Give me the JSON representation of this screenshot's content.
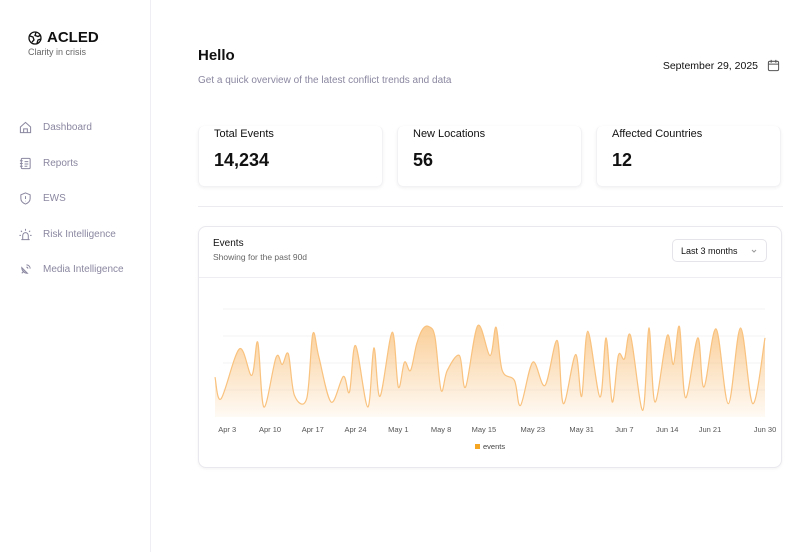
{
  "brand": {
    "name": "ACLED",
    "tagline": "Clarity in crisis",
    "icon": "globe-icon"
  },
  "sidebar": {
    "items": [
      {
        "label": "Dashboard",
        "icon": "home-icon"
      },
      {
        "label": "Reports",
        "icon": "notebook-icon"
      },
      {
        "label": "EWS",
        "icon": "shield-alert-icon"
      },
      {
        "label": "Risk Intelligence",
        "icon": "siren-icon"
      },
      {
        "label": "Media Intelligence",
        "icon": "satellite-dish-icon"
      }
    ]
  },
  "header": {
    "title": "Hello",
    "subtitle": "Get a quick overview of the latest conflict trends and data",
    "date": "September 29, 2025",
    "date_icon": "calendar-icon"
  },
  "stats": [
    {
      "label": "Total Events",
      "value": "14,234"
    },
    {
      "label": "New Locations",
      "value": "56"
    },
    {
      "label": "Affected Countries",
      "value": "12"
    }
  ],
  "panel": {
    "title": "Events",
    "subtitle": "Showing for the past 90d",
    "range_select": "Last 3 months"
  },
  "colors": {
    "accent": "#f5a623",
    "line": "#f9c27e"
  },
  "chart_data": {
    "type": "area",
    "legend": [
      "events"
    ],
    "legend_placement": "bottom",
    "grid": true,
    "ylim": [
      0,
      325
    ],
    "x_ticks": [
      "Apr 3",
      "Apr 10",
      "Apr 17",
      "Apr 24",
      "May 1",
      "May 8",
      "May 15",
      "May 23",
      "May 31",
      "Jun 7",
      "Jun 14",
      "Jun 21",
      "Jun 30"
    ],
    "x_tick_dates": [
      "2025-04-03",
      "2025-04-10",
      "2025-04-17",
      "2025-04-24",
      "2025-05-01",
      "2025-05-08",
      "2025-05-15",
      "2025-05-23",
      "2025-05-31",
      "2025-06-07",
      "2025-06-14",
      "2025-06-21",
      "2025-06-30"
    ],
    "xlim": [
      "2025-04-01",
      "2025-06-30"
    ],
    "series": [
      {
        "name": "events",
        "points": [
          [
            "2025-04-01",
            120
          ],
          [
            "2025-04-02",
            55
          ],
          [
            "2025-04-05",
            205
          ],
          [
            "2025-04-07",
            125
          ],
          [
            "2025-04-08",
            225
          ],
          [
            "2025-04-09",
            30
          ],
          [
            "2025-04-11",
            180
          ],
          [
            "2025-04-12",
            158
          ],
          [
            "2025-04-13",
            190
          ],
          [
            "2025-04-14",
            65
          ],
          [
            "2025-04-16",
            55
          ],
          [
            "2025-04-17",
            250
          ],
          [
            "2025-04-18",
            180
          ],
          [
            "2025-04-20",
            45
          ],
          [
            "2025-04-22",
            122
          ],
          [
            "2025-04-23",
            75
          ],
          [
            "2025-04-24",
            215
          ],
          [
            "2025-04-26",
            30
          ],
          [
            "2025-04-27",
            208
          ],
          [
            "2025-04-28",
            62
          ],
          [
            "2025-04-30",
            255
          ],
          [
            "2025-05-01",
            90
          ],
          [
            "2025-05-02",
            165
          ],
          [
            "2025-05-03",
            140
          ],
          [
            "2025-05-04",
            220
          ],
          [
            "2025-05-05",
            265
          ],
          [
            "2025-05-06",
            272
          ],
          [
            "2025-05-07",
            240
          ],
          [
            "2025-05-08",
            80
          ],
          [
            "2025-05-09",
            140
          ],
          [
            "2025-05-11",
            185
          ],
          [
            "2025-05-12",
            90
          ],
          [
            "2025-05-14",
            275
          ],
          [
            "2025-05-16",
            185
          ],
          [
            "2025-05-17",
            270
          ],
          [
            "2025-05-18",
            140
          ],
          [
            "2025-05-20",
            110
          ],
          [
            "2025-05-21",
            35
          ],
          [
            "2025-05-23",
            165
          ],
          [
            "2025-05-25",
            95
          ],
          [
            "2025-05-27",
            230
          ],
          [
            "2025-05-28",
            40
          ],
          [
            "2025-05-30",
            188
          ],
          [
            "2025-05-31",
            62
          ],
          [
            "2025-06-01",
            258
          ],
          [
            "2025-06-03",
            60
          ],
          [
            "2025-06-04",
            238
          ],
          [
            "2025-06-05",
            45
          ],
          [
            "2025-06-06",
            185
          ],
          [
            "2025-06-07",
            175
          ],
          [
            "2025-06-08",
            245
          ],
          [
            "2025-06-10",
            20
          ],
          [
            "2025-06-11",
            268
          ],
          [
            "2025-06-12",
            45
          ],
          [
            "2025-06-14",
            245
          ],
          [
            "2025-06-15",
            158
          ],
          [
            "2025-06-16",
            272
          ],
          [
            "2025-06-17",
            58
          ],
          [
            "2025-06-19",
            238
          ],
          [
            "2025-06-20",
            90
          ],
          [
            "2025-06-22",
            265
          ],
          [
            "2025-06-24",
            40
          ],
          [
            "2025-06-26",
            268
          ],
          [
            "2025-06-28",
            40
          ],
          [
            "2025-06-30",
            238
          ]
        ]
      }
    ]
  }
}
